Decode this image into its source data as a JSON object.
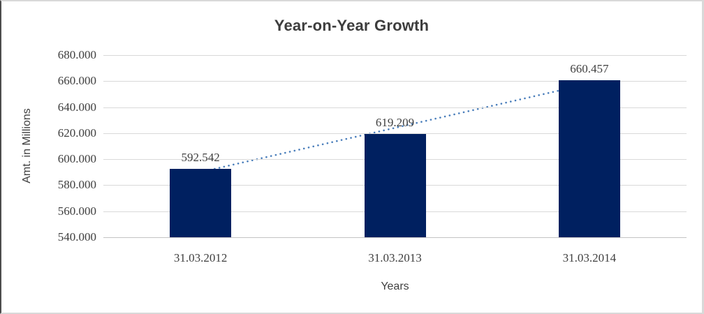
{
  "chart_data": {
    "type": "bar",
    "title": "Year-on-Year Growth",
    "categories": [
      "31.03.2012",
      "31.03.2013",
      "31.03.2014"
    ],
    "values": [
      592.542,
      619.209,
      660.457
    ],
    "value_labels": [
      "592.542",
      "619.209",
      "660.457"
    ],
    "xlabel": "Years",
    "ylabel": "Amt. in Millions",
    "ylim": [
      540,
      680
    ],
    "ytick_step": 20,
    "ytick_labels": [
      "680.000",
      "660.000",
      "640.000",
      "620.000",
      "600.000",
      "580.000",
      "560.000",
      "540.000"
    ],
    "grid": true,
    "legend": false,
    "trendline": {
      "type": "linear",
      "style": "dotted"
    },
    "colors": {
      "bar": "#002060",
      "trendline": "#4a7ebb",
      "gridline": "#d9d9d9",
      "axis_line": "#c3c3c3",
      "title_text": "#3d3d3d",
      "label_text": "#3f3f3f"
    }
  }
}
